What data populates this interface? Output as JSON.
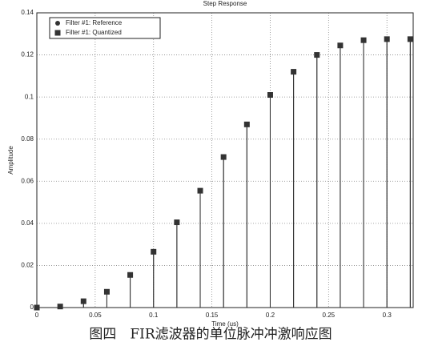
{
  "chart_data": {
    "type": "stem",
    "title": "Step Response",
    "xlabel": "Time (us)",
    "ylabel": "Amplitude",
    "x": [
      0,
      0.02,
      0.04,
      0.06,
      0.08,
      0.1,
      0.12,
      0.14,
      0.16,
      0.18,
      0.2,
      0.22,
      0.24,
      0.26,
      0.28,
      0.3,
      0.32
    ],
    "series": [
      {
        "name": "Filter #1: Reference",
        "color": "#333333",
        "marker": "circle",
        "values": [
          0,
          0.0005,
          0.003,
          0.0075,
          0.0155,
          0.0265,
          0.0405,
          0.0555,
          0.0715,
          0.087,
          0.101,
          0.112,
          0.12,
          0.1245,
          0.127,
          0.1275,
          0.1275
        ]
      },
      {
        "name": "Filter #1: Quantized",
        "color": "#333333",
        "marker": "square",
        "values": [
          0,
          0.0005,
          0.003,
          0.0075,
          0.0155,
          0.0265,
          0.0405,
          0.0555,
          0.0715,
          0.087,
          0.101,
          0.112,
          0.12,
          0.1245,
          0.127,
          0.1275,
          0.1275
        ]
      }
    ],
    "xlim": [
      0,
      0.3225
    ],
    "ylim": [
      0,
      0.14
    ],
    "xticks": [
      0,
      0.05,
      0.1,
      0.15,
      0.2,
      0.25,
      0.3
    ],
    "yticks": [
      0,
      0.02,
      0.04,
      0.06,
      0.08,
      0.1,
      0.12,
      0.14
    ],
    "grid": true,
    "legend": "upper-left"
  },
  "caption": "图四　FIR滤波器的单位脉冲冲激响应图"
}
